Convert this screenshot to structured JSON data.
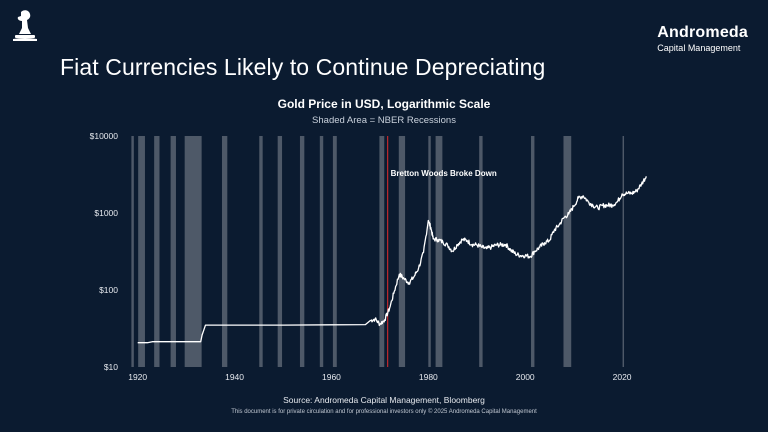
{
  "header": {
    "brand_name": "Andromeda",
    "brand_sub": "Capital Management",
    "logo_icon": "chess-knight-logo-icon"
  },
  "page_title": "Fiat Currencies Likely to Continue Depreciating",
  "footer": {
    "source": "Source: Andromeda Capital Management, Bloomberg",
    "disclaimer": "This document is for private circulation and for professional investors only © 2025 Andromeda Capital Management"
  },
  "chart_data": {
    "type": "line",
    "title": "Gold Price in USD, Logarithmic Scale",
    "subtitle": "Shaded Area = NBER Recessions",
    "xlabel": "",
    "ylabel": "",
    "y_scale": "log",
    "ylim": [
      10,
      10000
    ],
    "xlim": [
      1918,
      2027
    ],
    "y_ticks": [
      {
        "value": 10,
        "label": "$10"
      },
      {
        "value": 100,
        "label": "$100"
      },
      {
        "value": 1000,
        "label": "$1000"
      },
      {
        "value": 10000,
        "label": "$10000"
      }
    ],
    "x_ticks": [
      1920,
      1940,
      1960,
      1980,
      2000,
      2020
    ],
    "grid": false,
    "colors": {
      "line": "#ffffff",
      "recession": "#5a6472",
      "annotation_line": "#c0282d",
      "axis_text": "#e6e9ee"
    },
    "series": [
      {
        "x": [
          1920,
          1922,
          1923,
          1926,
          1930,
          1933,
          1933.3,
          1934,
          1940,
          1950,
          1960,
          1967,
          1968,
          1969,
          1970,
          1971,
          1972,
          1973,
          1974,
          1975,
          1976,
          1977,
          1978,
          1979,
          1980,
          1980.5,
          1981,
          1982,
          1983,
          1984,
          1985,
          1986,
          1987,
          1988,
          1989,
          1990,
          1991,
          1992,
          1993,
          1994,
          1995,
          1996,
          1997,
          1998,
          1999,
          2000,
          2001,
          2002,
          2003,
          2004,
          2005,
          2006,
          2007,
          2008,
          2009,
          2010,
          2011,
          2012,
          2013,
          2014,
          2015,
          2016,
          2017,
          2018,
          2019,
          2020,
          2021,
          2022,
          2023,
          2024,
          2025
        ],
        "y": [
          20.67,
          20.67,
          21.3,
          21.3,
          21.3,
          21.3,
          26,
          35,
          35,
          35,
          35.3,
          35.5,
          40,
          42,
          36,
          41,
          58,
          97,
          160,
          140,
          124,
          147,
          193,
          306,
          800,
          650,
          460,
          450,
          420,
          380,
          320,
          390,
          450,
          440,
          390,
          385,
          360,
          345,
          360,
          385,
          385,
          390,
          330,
          295,
          280,
          280,
          272,
          320,
          360,
          410,
          440,
          600,
          700,
          870,
          970,
          1220,
          1570,
          1670,
          1400,
          1260,
          1160,
          1250,
          1260,
          1270,
          1390,
          1770,
          1800,
          1800,
          1940,
          2380,
          3000
        ]
      }
    ],
    "recessions": [
      [
        1918.7,
        1919.2
      ],
      [
        1920.1,
        1921.5
      ],
      [
        1923.4,
        1924.5
      ],
      [
        1926.8,
        1927.9
      ],
      [
        1929.7,
        1933.2
      ],
      [
        1937.4,
        1938.5
      ],
      [
        1945.1,
        1945.8
      ],
      [
        1948.9,
        1949.8
      ],
      [
        1953.5,
        1954.4
      ],
      [
        1957.6,
        1958.3
      ],
      [
        1960.3,
        1961.1
      ],
      [
        1969.9,
        1970.9
      ],
      [
        1973.9,
        1975.2
      ],
      [
        1980.0,
        1980.5
      ],
      [
        1981.5,
        1982.9
      ],
      [
        1990.5,
        1991.2
      ],
      [
        2001.2,
        2001.9
      ],
      [
        2007.9,
        2009.5
      ],
      [
        2020.1,
        2020.4
      ]
    ],
    "annotations": [
      {
        "x": 1971.6,
        "text": "Bretton Woods Broke Down"
      }
    ]
  }
}
